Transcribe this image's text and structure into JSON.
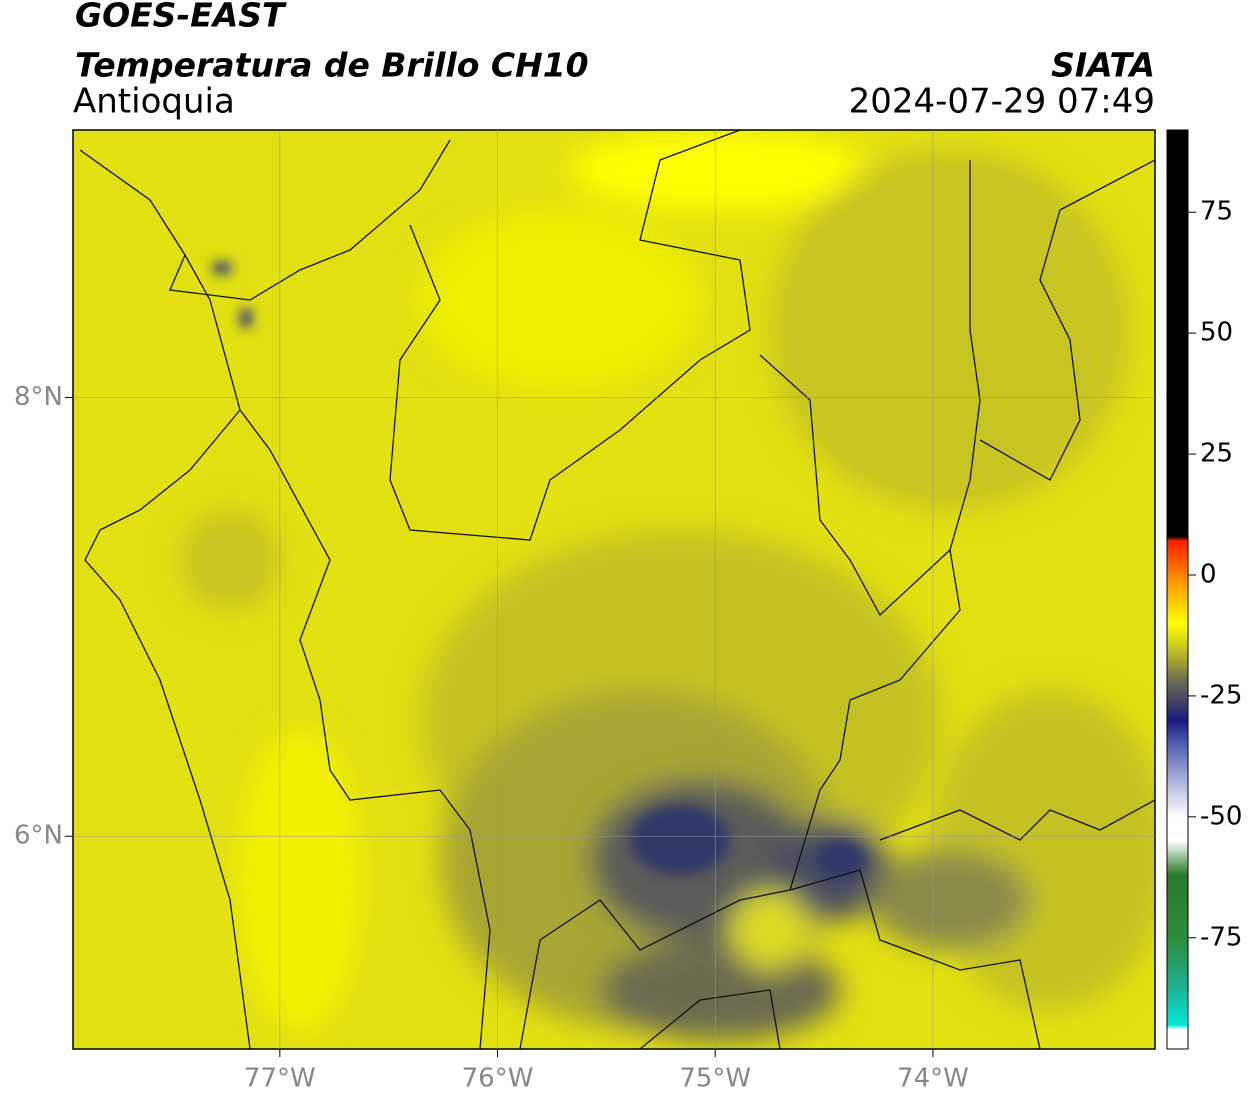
{
  "header": {
    "title": "GOES-EAST",
    "subtitle": "Temperatura de Brillo CH10",
    "region": "Antioquia",
    "source": "SIATA",
    "datetime": "2024-07-29 07:49"
  },
  "map": {
    "xlim": [
      -77.95,
      -72.98
    ],
    "ylim": [
      5.03,
      9.22
    ],
    "xticks": [
      {
        "value": -77,
        "label": "77°W"
      },
      {
        "value": -76,
        "label": "76°W"
      },
      {
        "value": -75,
        "label": "75°W"
      },
      {
        "value": -74,
        "label": "74°W"
      }
    ],
    "yticks": [
      {
        "value": 8,
        "label": "8°N"
      },
      {
        "value": 6,
        "label": "6°N"
      }
    ],
    "grid": true
  },
  "colorbar": {
    "lim": [
      -98,
      92
    ],
    "ticks": [
      75,
      50,
      25,
      0,
      -25,
      -50,
      -75
    ],
    "colorscale": [
      [
        -98,
        "#ffffff"
      ],
      [
        -94,
        "#ffffff"
      ],
      [
        -93,
        "#00e5d8"
      ],
      [
        -85,
        "#20b090"
      ],
      [
        -75,
        "#2e8b3a"
      ],
      [
        -62,
        "#2a7a2a"
      ],
      [
        -55,
        "#ffffff"
      ],
      [
        -50,
        "#ffffff"
      ],
      [
        -45,
        "#c8cce8"
      ],
      [
        -35,
        "#5060b0"
      ],
      [
        -30,
        "#1a1a80"
      ],
      [
        -27,
        "#3a3a6a"
      ],
      [
        -22,
        "#6a6a50"
      ],
      [
        -15,
        "#c8c820"
      ],
      [
        -10,
        "#ffff00"
      ],
      [
        -2,
        "#ffa000"
      ],
      [
        7,
        "#ff2000"
      ],
      [
        8,
        "#000000"
      ],
      [
        92,
        "#000000"
      ]
    ]
  }
}
